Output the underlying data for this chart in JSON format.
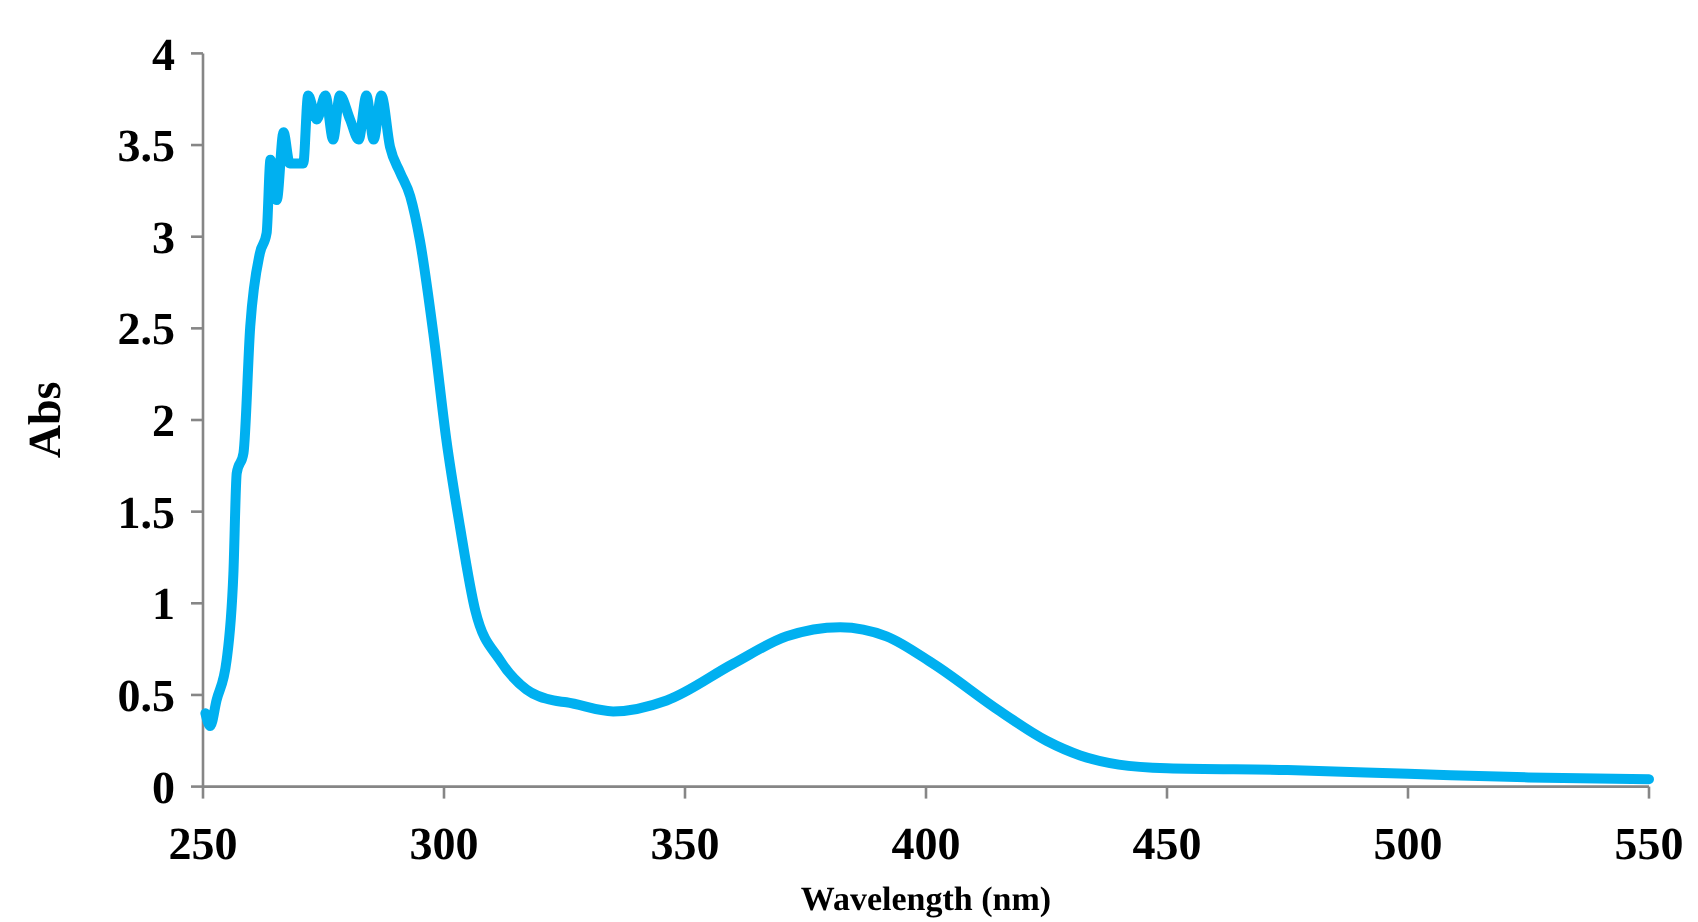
{
  "chart_data": {
    "type": "line",
    "xlabel": "Wavelength (nm)",
    "ylabel": "Abs",
    "xlim": [
      250,
      550
    ],
    "xticks": [
      250,
      300,
      350,
      400,
      450,
      500,
      550
    ],
    "ylim": [
      0,
      4
    ],
    "yticks": [
      0,
      0.5,
      1,
      1.5,
      2,
      2.5,
      3,
      3.5,
      4
    ],
    "grid": false,
    "marker": "none",
    "line_style": "solid",
    "series": [
      {
        "color": "#00b0f0",
        "x": [
          250.5,
          251.5,
          252.8,
          254.9,
          256.3,
          257,
          258.4,
          259.8,
          261.8,
          263.2,
          264,
          265.3,
          266.7,
          268,
          270.8,
          271.8,
          273.6,
          275.4,
          277,
          278.4,
          280.5,
          282.3,
          283.9,
          285.4,
          287,
          288.8,
          290.9,
          293,
          295,
          297.8,
          300.5,
          303.3,
          306.5,
          311.6,
          317.1,
          322.7,
          325.4,
          335.1,
          346.2,
          360,
          371.1,
          382.2,
          391.8,
          401.5,
          415.4,
          425,
          432,
          440,
          450,
          475,
          500,
          525,
          550
        ],
        "values": [
          0.4,
          0.33,
          0.47,
          0.69,
          1.16,
          1.71,
          1.82,
          2.51,
          2.91,
          3.02,
          3.42,
          3.2,
          3.57,
          3.4,
          3.4,
          3.77,
          3.64,
          3.77,
          3.53,
          3.77,
          3.64,
          3.53,
          3.77,
          3.53,
          3.77,
          3.49,
          3.35,
          3.22,
          2.98,
          2.47,
          1.89,
          1.42,
          0.96,
          0.69,
          0.53,
          0.47,
          0.46,
          0.41,
          0.47,
          0.67,
          0.82,
          0.87,
          0.82,
          0.67,
          0.41,
          0.25,
          0.17,
          0.12,
          0.1,
          0.09,
          0.07,
          0.05,
          0.04
        ]
      }
    ]
  }
}
